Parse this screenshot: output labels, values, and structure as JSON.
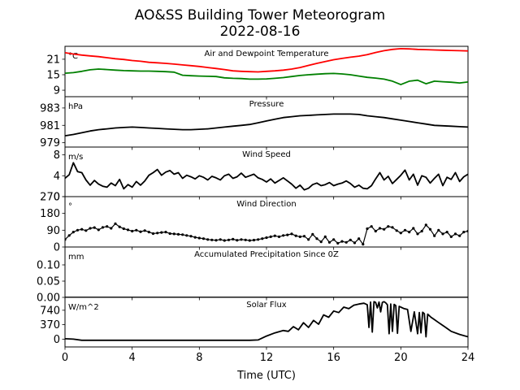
{
  "figure": {
    "title": "AO&SS Building Tower Meteorogram",
    "subtitle": "2022-08-16",
    "xlabel": "Time (UTC)"
  },
  "chart_data": [
    {
      "type": "line",
      "title": "Air and Dewpoint Temperature",
      "unit": "°C",
      "ylim": [
        6.5,
        26
      ],
      "yticks": [
        9,
        15,
        21
      ],
      "colors": [
        "#ff0000",
        "#008000"
      ],
      "series": [
        {
          "x": [
            0,
            0.5,
            1,
            1.5,
            2,
            2.5,
            3,
            3.5,
            4,
            4.5,
            5,
            5.5,
            6,
            6.5,
            7,
            7.5,
            8,
            8.5,
            9,
            9.5,
            10,
            10.5,
            11,
            11.5,
            12,
            12.5,
            13,
            13.5,
            14,
            14.5,
            15,
            15.5,
            16,
            16.5,
            17,
            17.5,
            18,
            18.5,
            19,
            19.5,
            20,
            20.5,
            21,
            21.5,
            22,
            22.5,
            23,
            23.5,
            24
          ],
          "values": [
            23.5,
            23,
            22.6,
            22.3,
            22,
            21.6,
            21.2,
            20.9,
            20.5,
            20.2,
            19.8,
            19.6,
            19.4,
            19.1,
            18.8,
            18.5,
            18.2,
            17.8,
            17.4,
            17,
            16.5,
            16.3,
            16.2,
            16.1,
            16.3,
            16.5,
            16.8,
            17.2,
            17.8,
            18.6,
            19.4,
            20.1,
            20.8,
            21.3,
            21.8,
            22.2,
            22.8,
            23.6,
            24.3,
            24.8,
            25.1,
            25,
            24.8,
            24.7,
            24.6,
            24.5,
            24.4,
            24.3,
            24.2
          ]
        },
        {
          "x": [
            0,
            0.5,
            1,
            1.5,
            2,
            2.5,
            3,
            3.5,
            4,
            4.5,
            5,
            5.5,
            6,
            6.5,
            7,
            7.5,
            8,
            8.5,
            9,
            9.5,
            10,
            10.5,
            11,
            11.5,
            12,
            12.5,
            13,
            13.5,
            14,
            14.5,
            15,
            15.5,
            16,
            16.5,
            17,
            17.5,
            18,
            18.5,
            19,
            19.5,
            20,
            20.5,
            21,
            21.5,
            22,
            22.5,
            23,
            23.5,
            24
          ],
          "values": [
            15.6,
            15.8,
            16.3,
            16.9,
            17.2,
            17,
            16.8,
            16.6,
            16.5,
            16.4,
            16.4,
            16.3,
            16.2,
            16,
            14.8,
            14.6,
            14.5,
            14.4,
            14.3,
            13.8,
            13.6,
            13.5,
            13.3,
            13.3,
            13.4,
            13.6,
            13.9,
            14.3,
            14.7,
            15,
            15.2,
            15.4,
            15.5,
            15.3,
            15,
            14.5,
            14,
            13.7,
            13.3,
            12.5,
            11.2,
            12.5,
            12.9,
            11.5,
            12.5,
            12.3,
            12.1,
            11.8,
            12.2
          ]
        }
      ]
    },
    {
      "type": "line",
      "title": "Pressure",
      "unit": "hPa",
      "ylim": [
        978.5,
        984.3
      ],
      "yticks": [
        979,
        981,
        983
      ],
      "colors": [
        "#000000"
      ],
      "series": [
        {
          "x": [
            0,
            0.5,
            1,
            1.5,
            2,
            2.5,
            3,
            3.5,
            4,
            4.5,
            5,
            5.5,
            6,
            6.5,
            7,
            7.5,
            8,
            8.5,
            9,
            9.5,
            10,
            10.5,
            11,
            11.5,
            12,
            12.5,
            13,
            13.5,
            14,
            14.5,
            15,
            15.5,
            16,
            16.5,
            17,
            17.5,
            18,
            18.5,
            19,
            19.5,
            20,
            20.5,
            21,
            21.5,
            22,
            22.5,
            23,
            23.5,
            24
          ],
          "values": [
            979.8,
            979.95,
            980.15,
            980.35,
            980.5,
            980.6,
            980.7,
            980.75,
            980.8,
            980.75,
            980.7,
            980.65,
            980.6,
            980.55,
            980.5,
            980.5,
            980.55,
            980.6,
            980.7,
            980.8,
            980.9,
            981.0,
            981.1,
            981.3,
            981.5,
            981.7,
            981.9,
            982.0,
            982.1,
            982.15,
            982.2,
            982.25,
            982.3,
            982.3,
            982.3,
            982.25,
            982.1,
            982.0,
            981.9,
            981.75,
            981.6,
            981.45,
            981.3,
            981.15,
            981.0,
            980.95,
            980.9,
            980.85,
            980.8
          ]
        }
      ]
    },
    {
      "type": "line",
      "title": "Wind Speed",
      "unit": "m/s",
      "ylim": [
        0,
        9.5
      ],
      "yticks": [
        0,
        4,
        8
      ],
      "colors": [
        "#000000"
      ],
      "series": [
        {
          "x": [
            0,
            0.25,
            0.5,
            0.75,
            1,
            1.25,
            1.5,
            1.75,
            2,
            2.25,
            2.5,
            2.75,
            3,
            3.25,
            3.5,
            3.75,
            4,
            4.25,
            4.5,
            4.75,
            5,
            5.25,
            5.5,
            5.75,
            6,
            6.25,
            6.5,
            6.75,
            7,
            7.25,
            7.5,
            7.75,
            8,
            8.25,
            8.5,
            8.75,
            9,
            9.25,
            9.5,
            9.75,
            10,
            10.25,
            10.5,
            10.75,
            11,
            11.25,
            11.5,
            11.75,
            12,
            12.25,
            12.5,
            12.75,
            13,
            13.25,
            13.5,
            13.75,
            14,
            14.25,
            14.5,
            14.75,
            15,
            15.25,
            15.5,
            15.75,
            16,
            16.25,
            16.5,
            16.75,
            17,
            17.25,
            17.5,
            17.75,
            18,
            18.25,
            18.5,
            18.75,
            19,
            19.25,
            19.5,
            19.75,
            20,
            20.25,
            20.5,
            20.75,
            21,
            21.25,
            21.5,
            21.75,
            22,
            22.25,
            22.5,
            22.75,
            23,
            23.25,
            23.5,
            23.75,
            24
          ],
          "values": [
            3.5,
            4.2,
            6.5,
            4.8,
            4.6,
            3.2,
            2.2,
            3.1,
            2.4,
            2.0,
            1.8,
            2.6,
            2.1,
            3.3,
            1.5,
            2.3,
            1.8,
            2.9,
            2.2,
            3.0,
            4.1,
            4.6,
            5.2,
            4.1,
            4.7,
            5.0,
            4.3,
            4.6,
            3.5,
            4.1,
            3.8,
            3.4,
            4.0,
            3.7,
            3.2,
            3.9,
            3.6,
            3.2,
            4.0,
            4.3,
            3.5,
            3.8,
            4.5,
            3.7,
            4.0,
            4.3,
            3.6,
            3.3,
            2.8,
            3.4,
            2.6,
            3.1,
            3.6,
            3.0,
            2.4,
            1.6,
            2.2,
            1.3,
            1.6,
            2.3,
            2.6,
            2.1,
            2.3,
            2.7,
            2.1,
            2.4,
            2.6,
            3.0,
            2.5,
            1.8,
            2.2,
            1.6,
            1.5,
            2.1,
            3.4,
            4.6,
            3.2,
            3.9,
            2.5,
            3.3,
            4.1,
            5.1,
            3.2,
            4.3,
            2.2,
            4.0,
            3.7,
            2.6,
            3.5,
            4.3,
            2.1,
            3.7,
            3.3,
            4.6,
            2.9,
            3.8,
            4.3
          ]
        }
      ]
    },
    {
      "type": "scatter",
      "title": "Wind Direction",
      "unit": "°",
      "ylim": [
        0,
        270
      ],
      "yticks": [
        0,
        90,
        180,
        270
      ],
      "colors": [
        "#000000"
      ],
      "series": [
        {
          "x": [
            0,
            0.25,
            0.5,
            0.75,
            1,
            1.25,
            1.5,
            1.75,
            2,
            2.25,
            2.5,
            2.75,
            3,
            3.25,
            3.5,
            3.75,
            4,
            4.25,
            4.5,
            4.75,
            5,
            5.25,
            5.5,
            5.75,
            6,
            6.25,
            6.5,
            6.75,
            7,
            7.25,
            7.5,
            7.75,
            8,
            8.25,
            8.5,
            8.75,
            9,
            9.25,
            9.5,
            9.75,
            10,
            10.25,
            10.5,
            10.75,
            11,
            11.25,
            11.5,
            11.75,
            12,
            12.25,
            12.5,
            12.75,
            13,
            13.25,
            13.5,
            13.75,
            14,
            14.25,
            14.5,
            14.75,
            15,
            15.25,
            15.5,
            15.75,
            16,
            16.25,
            16.5,
            16.75,
            17,
            17.25,
            17.5,
            17.75,
            18,
            18.25,
            18.5,
            18.75,
            19,
            19.25,
            19.5,
            19.75,
            20,
            20.25,
            20.5,
            20.75,
            21,
            21.25,
            21.5,
            21.75,
            22,
            22.25,
            22.5,
            22.75,
            23,
            23.25,
            23.5,
            23.75,
            24
          ],
          "values": [
            40,
            62,
            80,
            90,
            95,
            88,
            100,
            104,
            92,
            105,
            110,
            100,
            125,
            108,
            98,
            92,
            85,
            90,
            82,
            88,
            80,
            72,
            75,
            78,
            80,
            72,
            70,
            68,
            66,
            62,
            58,
            52,
            48,
            45,
            40,
            38,
            36,
            40,
            35,
            38,
            42,
            36,
            40,
            38,
            35,
            37,
            40,
            45,
            50,
            55,
            60,
            55,
            62,
            65,
            70,
            60,
            55,
            58,
            40,
            68,
            45,
            28,
            55,
            25,
            40,
            20,
            30,
            25,
            38,
            22,
            45,
            15,
            98,
            110,
            85,
            100,
            95,
            110,
            105,
            88,
            75,
            90,
            80,
            100,
            70,
            85,
            118,
            95,
            60,
            90,
            70,
            80,
            55,
            70,
            60,
            80,
            85
          ]
        }
      ]
    },
    {
      "type": "line",
      "title": "Accumulated Precipitation Since 0Z",
      "unit": "mm",
      "ylim": [
        0,
        0.155
      ],
      "yticks": [
        0.0,
        0.05,
        0.1
      ],
      "colors": [
        "#000000"
      ],
      "series": [
        {
          "x": [
            0,
            24
          ],
          "values": [
            0.0,
            0.0
          ]
        }
      ]
    },
    {
      "type": "line",
      "title": "Solar Flux",
      "unit": "W/m^2",
      "ylim": [
        -200,
        1070
      ],
      "yticks": [
        0,
        370,
        740
      ],
      "colors": [
        "#000000"
      ],
      "series": [
        {
          "x": [
            0,
            0.5,
            1,
            2,
            4,
            6,
            8,
            10,
            11,
            11.5,
            12,
            12.5,
            13,
            13.3,
            13.6,
            13.9,
            14.2,
            14.5,
            14.8,
            15.1,
            15.4,
            15.7,
            16,
            16.3,
            16.6,
            16.9,
            17.2,
            17.5,
            17.8,
            18,
            18.1,
            18.2,
            18.3,
            18.4,
            18.5,
            18.6,
            18.7,
            18.8,
            18.9,
            19,
            19.1,
            19.2,
            19.3,
            19.4,
            19.5,
            19.6,
            19.7,
            19.8,
            19.9,
            20,
            20.2,
            20.4,
            20.6,
            20.8,
            21,
            21.1,
            21.2,
            21.3,
            21.4,
            21.5,
            21.6,
            21.8,
            22,
            22.2,
            22.4,
            22.6,
            22.8,
            23,
            23.5,
            24
          ],
          "values": [
            10,
            0,
            -30,
            -30,
            -30,
            -30,
            -30,
            -30,
            -30,
            -20,
            80,
            160,
            220,
            200,
            320,
            240,
            420,
            300,
            480,
            380,
            620,
            560,
            720,
            680,
            820,
            780,
            870,
            900,
            920,
            880,
            300,
            950,
            180,
            960,
            940,
            800,
            950,
            700,
            940,
            960,
            930,
            880,
            140,
            900,
            200,
            890,
            860,
            150,
            840,
            820,
            780,
            760,
            200,
            700,
            140,
            680,
            160,
            690,
            650,
            60,
            640,
            560,
            500,
            440,
            380,
            320,
            260,
            200,
            120,
            60
          ]
        }
      ]
    }
  ],
  "xaxis": {
    "xlim": [
      0,
      24
    ],
    "xticks": [
      0,
      4,
      8,
      12,
      16,
      20,
      24
    ]
  }
}
